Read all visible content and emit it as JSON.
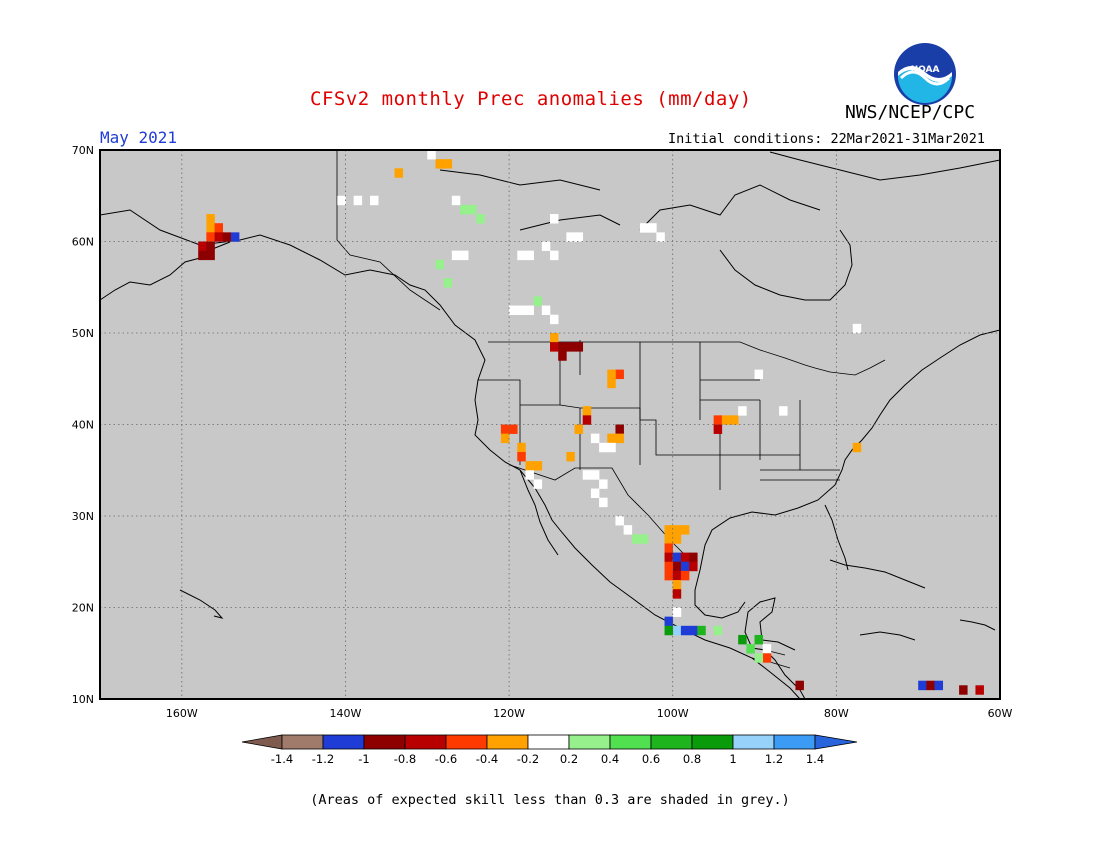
{
  "header": {
    "title": "CFSv2 monthly Prec anomalies (mm/day)",
    "organization": "NWS/NCEP/CPC",
    "period": "May 2021",
    "initial_conditions": "Initial conditions: 22Mar2021-31Mar2021",
    "logo_text": "NOAA"
  },
  "map": {
    "projection": "cylindrical lat-lon",
    "lon_range": [
      -170,
      -60
    ],
    "lat_range": [
      10,
      70
    ],
    "background_color": "#c8c8c8",
    "lat_ticks": [
      "70N",
      "60N",
      "50N",
      "40N",
      "30N",
      "20N",
      "10N"
    ],
    "lon_ticks": [
      "160W",
      "140W",
      "120W",
      "100W",
      "80W",
      "60W"
    ],
    "gridlines": "dotted"
  },
  "legend": {
    "labels": [
      "-1.4",
      "-1.2",
      "-1",
      "-0.8",
      "-0.6",
      "-0.4",
      "-0.2",
      "0.2",
      "0.4",
      "0.6",
      "0.8",
      "1",
      "1.2",
      "1.4"
    ],
    "colors": [
      "#7f5a4e",
      "#a07b6b",
      "#1f3cd6",
      "#8e0000",
      "#b80000",
      "#ff3a00",
      "#ffa200",
      "#ffffff",
      "#96f08c",
      "#50e050",
      "#1eb41e",
      "#0a9b0a",
      "#96d2fa",
      "#3c9bf5",
      "#2864dc"
    ]
  },
  "caption": "(Areas of expected skill less than 0.3 are shaded in grey.)"
}
